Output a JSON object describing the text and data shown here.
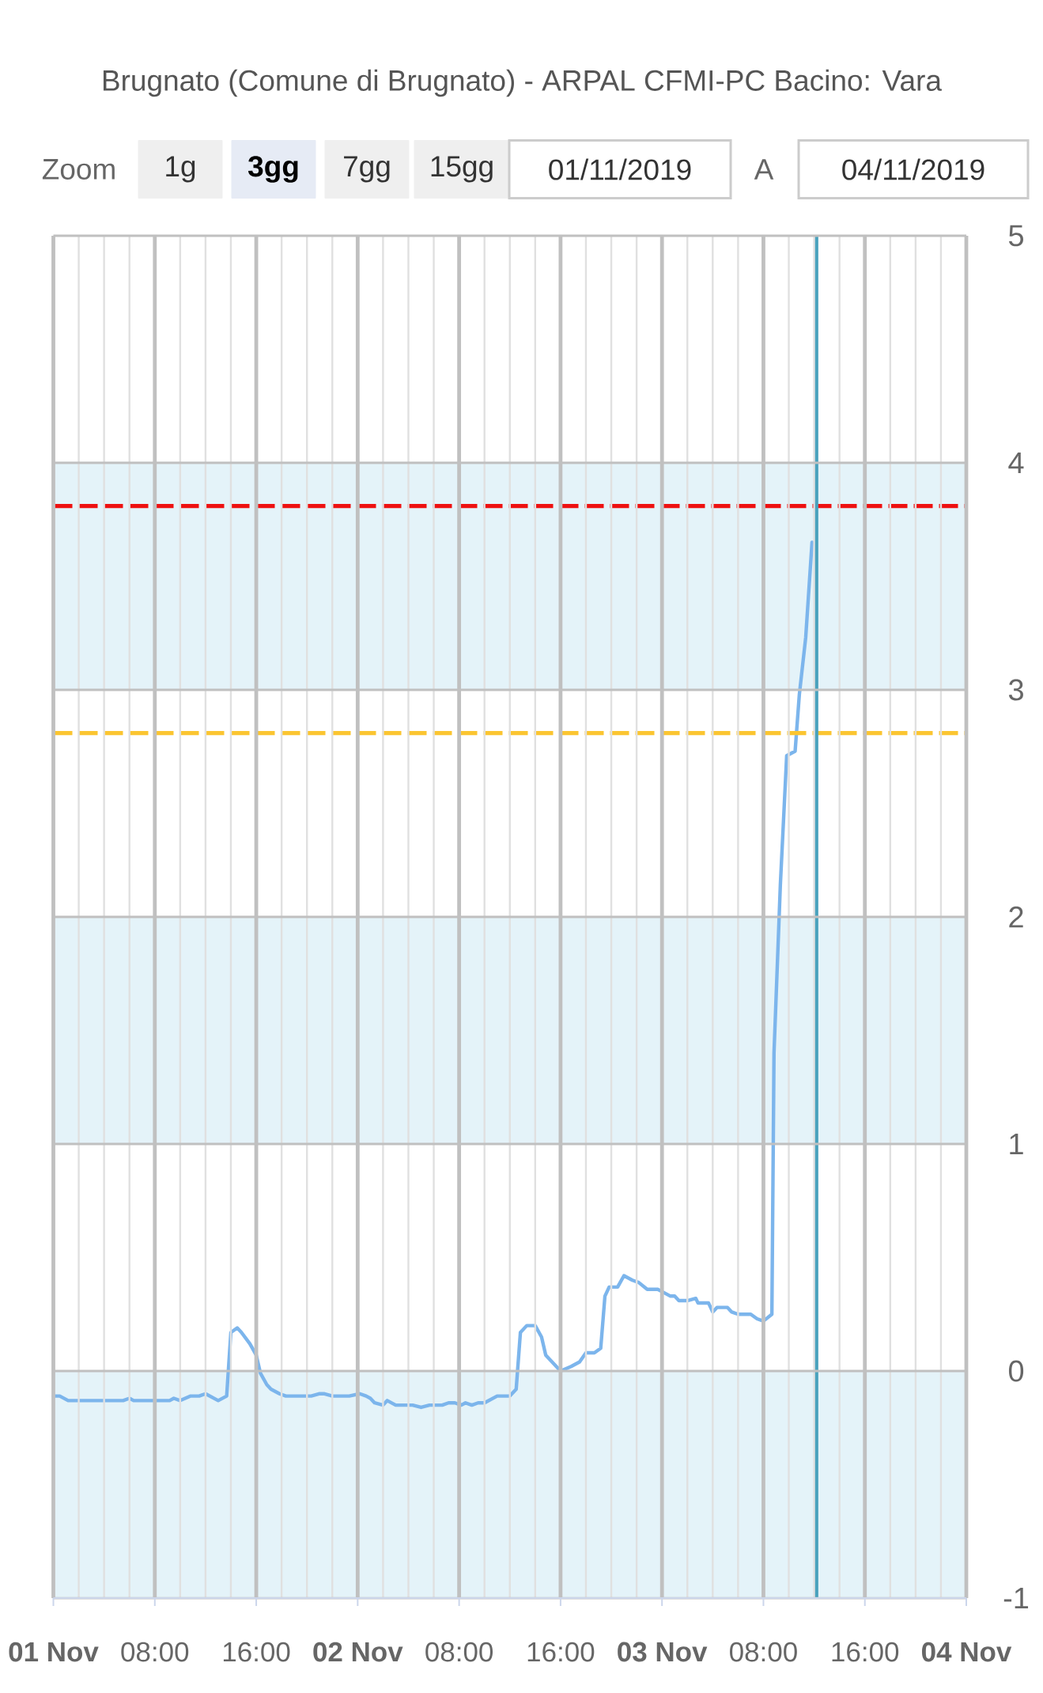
{
  "chart_data": {
    "type": "line",
    "title": "Brugnato (Comune di Brugnato) - ARPAL CFMI-PC Bacino: Vara",
    "annotations": [
      "Zoom",
      "1g",
      "3gg",
      "7gg",
      "15gg",
      "01/11/2019",
      "A",
      "04/11/2019"
    ],
    "x": [
      "2019-11-01T00:00",
      "2019-11-01T00:30",
      "2019-11-01T01:10",
      "2019-11-01T05:30",
      "2019-11-01T06:00",
      "2019-11-01T06:20",
      "2019-11-01T09:10",
      "2019-11-01T09:30",
      "2019-11-01T10:00",
      "2019-11-01T10:50",
      "2019-11-01T11:30",
      "2019-11-01T12:00",
      "2019-11-01T13:00",
      "2019-11-01T13:40",
      "2019-11-01T14:00",
      "2019-11-01T14:30",
      "2019-11-01T14:50",
      "2019-11-01T15:30",
      "2019-11-01T16:00",
      "2019-11-01T16:20",
      "2019-11-01T16:50",
      "2019-11-01T17:10",
      "2019-11-01T17:50",
      "2019-11-01T18:20",
      "2019-11-01T20:20",
      "2019-11-01T21:00",
      "2019-11-01T21:20",
      "2019-11-01T22:00",
      "2019-11-01T23:20",
      "2019-11-02T00:10",
      "2019-11-02T00:40",
      "2019-11-02T01:00",
      "2019-11-02T01:20",
      "2019-11-02T02:00",
      "2019-11-02T02:20",
      "2019-11-02T03:00",
      "2019-11-02T04:20",
      "2019-11-02T05:00",
      "2019-11-02T05:40",
      "2019-11-02T06:40",
      "2019-11-02T07:10",
      "2019-11-02T07:40",
      "2019-11-02T08:10",
      "2019-11-02T08:30",
      "2019-11-02T09:00",
      "2019-11-02T09:30",
      "2019-11-02T10:00",
      "2019-11-02T11:00",
      "2019-11-02T12:00",
      "2019-11-02T12:30",
      "2019-11-02T12:50",
      "2019-11-02T13:20",
      "2019-11-02T14:00",
      "2019-11-02T14:30",
      "2019-11-02T14:50",
      "2019-11-02T16:00",
      "2019-11-02T16:50",
      "2019-11-02T17:30",
      "2019-11-02T18:00",
      "2019-11-02T18:40",
      "2019-11-02T19:10",
      "2019-11-02T19:30",
      "2019-11-02T19:50",
      "2019-11-02T20:30",
      "2019-11-02T21:00",
      "2019-11-02T21:40",
      "2019-11-02T22:10",
      "2019-11-02T22:50",
      "2019-11-02T23:40",
      "2019-11-03T00:00",
      "2019-11-03T00:40",
      "2019-11-03T01:00",
      "2019-11-03T01:20",
      "2019-11-03T02:00",
      "2019-11-03T02:40",
      "2019-11-03T02:50",
      "2019-11-03T03:40",
      "2019-11-03T04:00",
      "2019-11-03T04:20",
      "2019-11-03T05:10",
      "2019-11-03T05:30",
      "2019-11-03T06:00",
      "2019-11-03T07:00",
      "2019-11-03T07:30",
      "2019-11-03T08:00",
      "2019-11-03T08:40",
      "2019-11-03T08:50",
      "2019-11-03T09:20",
      "2019-11-03T09:50",
      "2019-11-03T10:30",
      "2019-11-03T10:50",
      "2019-11-03T11:20",
      "2019-11-03T11:50"
    ],
    "series": [
      {
        "color": "#7cb5ec",
        "values": [
          -0.11,
          -0.11,
          -0.13,
          -0.13,
          -0.12,
          -0.13,
          -0.13,
          -0.12,
          -0.13,
          -0.11,
          -0.11,
          -0.1,
          -0.13,
          -0.11,
          0.17,
          0.19,
          0.17,
          0.12,
          0.07,
          -0.01,
          -0.06,
          -0.08,
          -0.1,
          -0.11,
          -0.11,
          -0.1,
          -0.1,
          -0.11,
          -0.11,
          -0.1,
          -0.11,
          -0.12,
          -0.14,
          -0.15,
          -0.13,
          -0.15,
          -0.15,
          -0.16,
          -0.15,
          -0.15,
          -0.14,
          -0.14,
          -0.15,
          -0.14,
          -0.15,
          -0.14,
          -0.14,
          -0.11,
          -0.11,
          -0.08,
          0.17,
          0.2,
          0.2,
          0.15,
          0.07,
          0.0,
          0.02,
          0.04,
          0.08,
          0.08,
          0.1,
          0.33,
          0.37,
          0.37,
          0.42,
          0.4,
          0.39,
          0.36,
          0.36,
          0.35,
          0.33,
          0.33,
          0.31,
          0.31,
          0.32,
          0.3,
          0.3,
          0.26,
          0.28,
          0.28,
          0.26,
          0.25,
          0.25,
          0.23,
          0.22,
          0.25,
          1.4,
          2.14,
          2.71,
          2.73,
          2.98,
          3.23,
          3.65
        ]
      }
    ],
    "xlim": [
      "2019-11-01T00:00",
      "2019-11-04T00:00"
    ],
    "xticks": [
      {
        "value": "2019-11-01T00:00",
        "label": "01 Nov"
      },
      {
        "value": "2019-11-01T08:00",
        "label": "08:00"
      },
      {
        "value": "2019-11-01T16:00",
        "label": "16:00"
      },
      {
        "value": "2019-11-02T00:00",
        "label": "02 Nov"
      },
      {
        "value": "2019-11-02T08:00",
        "label": "08:00"
      },
      {
        "value": "2019-11-02T16:00",
        "label": "16:00"
      },
      {
        "value": "2019-11-03T00:00",
        "label": "03 Nov"
      },
      {
        "value": "2019-11-03T08:00",
        "label": "08:00"
      },
      {
        "value": "2019-11-03T16:00",
        "label": "16:00"
      },
      {
        "value": "2019-11-04T00:00",
        "label": "04 Nov"
      }
    ],
    "ylim": [
      -1,
      5
    ],
    "yticks": [
      -1,
      0,
      1,
      2,
      3,
      4,
      5
    ],
    "grid": true,
    "bands": [
      {
        "axis": "y",
        "from": -1,
        "to": 0,
        "color": "#e4f3f9"
      },
      {
        "axis": "y",
        "from": 1,
        "to": 2,
        "color": "#e4f3f9"
      },
      {
        "axis": "y",
        "from": 3,
        "to": 4,
        "color": "#e4f3f9"
      }
    ],
    "ref_lines": [
      {
        "axis": "y",
        "value": 3.81,
        "color": "#ee1111",
        "line_style": "dashed"
      },
      {
        "axis": "y",
        "value": 2.81,
        "color": "#fbc531",
        "line_style": "dashed"
      },
      {
        "axis": "x",
        "value": "2019-11-03T12:10",
        "color": "#49a2bd",
        "line_style": "solid"
      }
    ]
  }
}
